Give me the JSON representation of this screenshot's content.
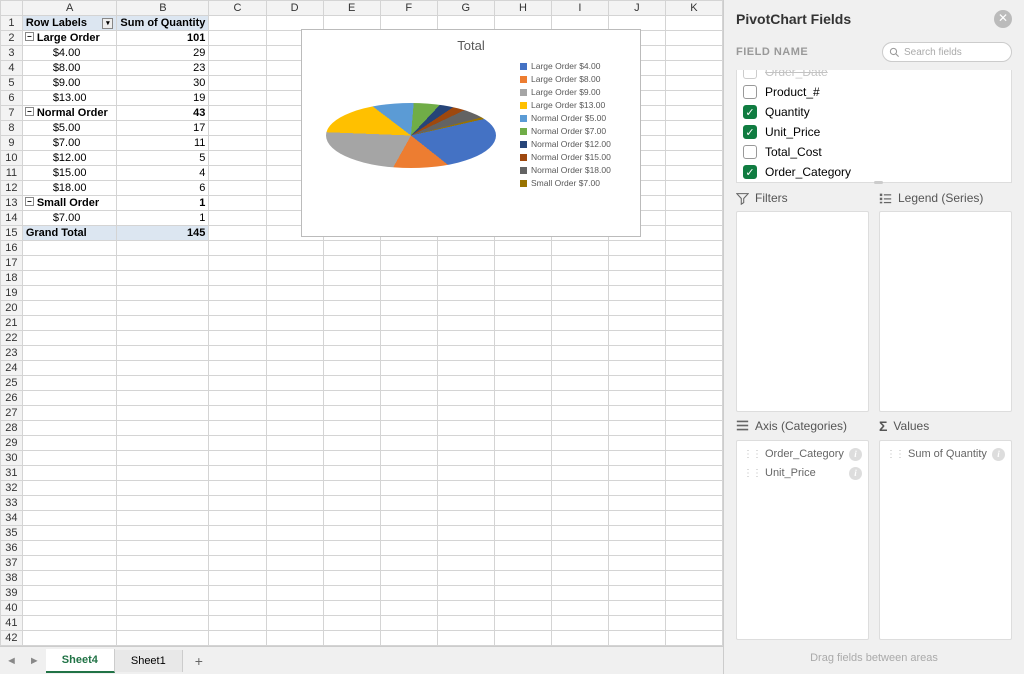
{
  "grid": {
    "columns": [
      "A",
      "B",
      "C",
      "D",
      "E",
      "F",
      "G",
      "H",
      "I",
      "J",
      "K"
    ],
    "rowCount": 42,
    "header": {
      "rowLabels": "Row Labels",
      "sumOfQty": "Sum of Quantity"
    },
    "groups": [
      {
        "label": "Large Order",
        "total": 101,
        "items": [
          {
            "price": "$4.00",
            "qty": 29
          },
          {
            "price": "$8.00",
            "qty": 23
          },
          {
            "price": "$9.00",
            "qty": 30
          },
          {
            "price": "$13.00",
            "qty": 19
          }
        ]
      },
      {
        "label": "Normal Order",
        "total": 43,
        "items": [
          {
            "price": "$5.00",
            "qty": 17
          },
          {
            "price": "$7.00",
            "qty": 11
          },
          {
            "price": "$12.00",
            "qty": 5
          },
          {
            "price": "$15.00",
            "qty": 4
          },
          {
            "price": "$18.00",
            "qty": 6
          }
        ]
      },
      {
        "label": "Small Order",
        "total": 1,
        "items": [
          {
            "price": "$7.00",
            "qty": 1
          }
        ]
      }
    ],
    "grandTotal": {
      "label": "Grand Total",
      "value": 145
    }
  },
  "chart": {
    "title": "Total",
    "type": "pie-3d",
    "background": "#ffffff",
    "title_fontsize": 13,
    "title_color": "#595959",
    "slices": [
      {
        "label": "Large Order $4.00",
        "value": 29,
        "color": "#4472c4"
      },
      {
        "label": "Large Order $8.00",
        "value": 23,
        "color": "#ed7d31"
      },
      {
        "label": "Large Order $9.00",
        "value": 30,
        "color": "#a5a5a5"
      },
      {
        "label": "Large Order $13.00",
        "value": 19,
        "color": "#ffc000"
      },
      {
        "label": "Normal Order $5.00",
        "value": 17,
        "color": "#5b9bd5"
      },
      {
        "label": "Normal Order $7.00",
        "value": 11,
        "color": "#70ad47"
      },
      {
        "label": "Normal Order $12.00",
        "value": 5,
        "color": "#264478"
      },
      {
        "label": "Normal Order $15.00",
        "value": 4,
        "color": "#9e480e"
      },
      {
        "label": "Normal Order $18.00",
        "value": 6,
        "color": "#636363"
      },
      {
        "label": "Small Order $7.00",
        "value": 1,
        "color": "#997300"
      }
    ],
    "legend_fontsize": 8.5,
    "legend_color": "#595959"
  },
  "tabs": {
    "active": "Sheet4",
    "other": "Sheet1"
  },
  "pane": {
    "title": "PivotChart Fields",
    "fieldNameLabel": "FIELD NAME",
    "searchPlaceholder": "Search fields",
    "fields": [
      {
        "name": "Order_Date",
        "checked": false,
        "clipped": true
      },
      {
        "name": "Product_#",
        "checked": false
      },
      {
        "name": "Quantity",
        "checked": true
      },
      {
        "name": "Unit_Price",
        "checked": true
      },
      {
        "name": "Total_Cost",
        "checked": false
      },
      {
        "name": "Order_Category",
        "checked": true
      }
    ],
    "areas": {
      "filters": {
        "label": "Filters",
        "items": []
      },
      "legend": {
        "label": "Legend (Series)",
        "items": []
      },
      "axis": {
        "label": "Axis (Categories)",
        "items": [
          "Order_Category",
          "Unit_Price"
        ]
      },
      "values": {
        "label": "Values",
        "items": [
          "Sum of Quantity"
        ]
      }
    },
    "dragHint": "Drag fields between areas"
  }
}
